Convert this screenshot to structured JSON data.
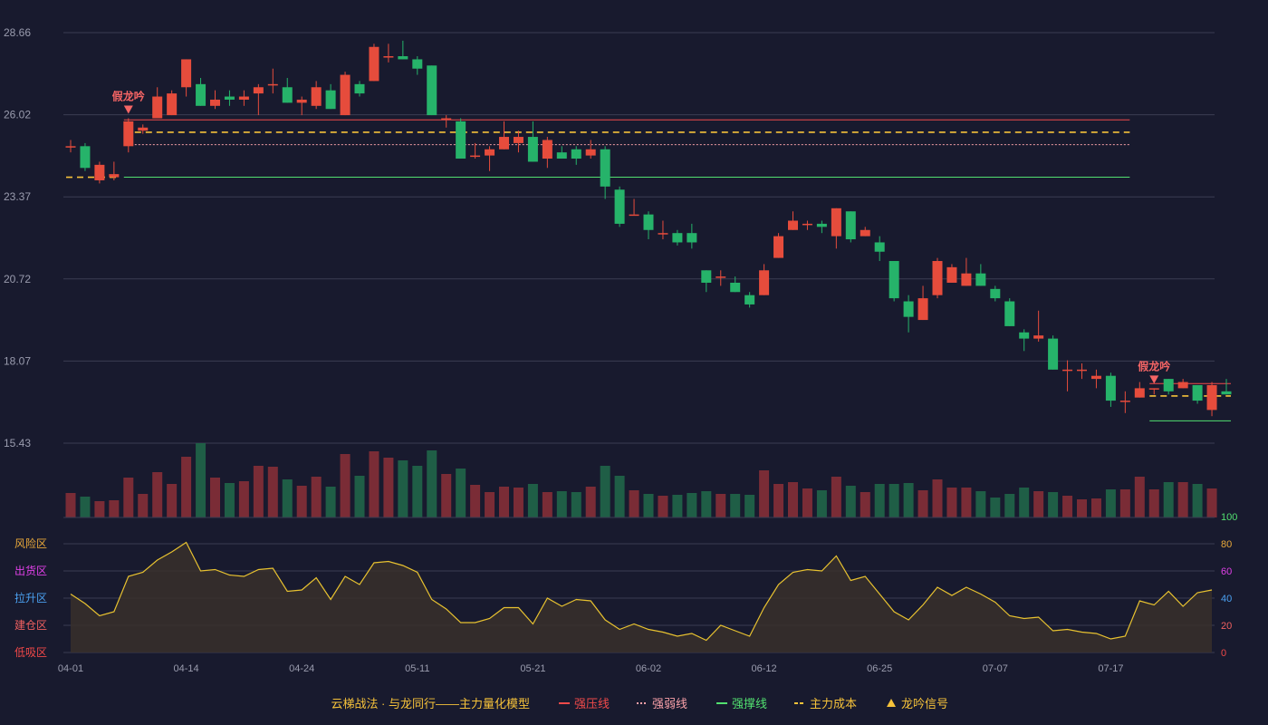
{
  "colors": {
    "background": "#181a2e",
    "grid": "#3a3c52",
    "axis_text": "#9a9cae",
    "up": "#e64c3c",
    "down": "#26b36a",
    "vol_up": "#7a2c36",
    "vol_down": "#1f5e46",
    "resistance": "#f04a4a",
    "weak": "#f8a0a8",
    "support": "#52e070",
    "cost": "#f6c23a",
    "signal": "#f56565",
    "osc_line": "#e8c230",
    "osc_fill": "#38302a",
    "legend_text": "#f6c23a"
  },
  "chart_data": {
    "type": "candlestick",
    "y_axis_ticks": [
      "28.66",
      "26.02",
      "23.37",
      "20.72",
      "18.07",
      "15.43"
    ],
    "ylim": [
      15.43,
      28.66
    ],
    "x_tick_labels": [
      {
        "label": "04-01",
        "index": 0
      },
      {
        "label": "04-14",
        "index": 8
      },
      {
        "label": "04-24",
        "index": 16
      },
      {
        "label": "05-11",
        "index": 24
      },
      {
        "label": "05-21",
        "index": 32
      },
      {
        "label": "06-02",
        "index": 40
      },
      {
        "label": "06-12",
        "index": 48
      },
      {
        "label": "06-25",
        "index": 56
      },
      {
        "label": "07-07",
        "index": 64
      },
      {
        "label": "07-17",
        "index": 72
      }
    ],
    "candles": [
      [
        25.0,
        25.0,
        25.2,
        24.8
      ],
      [
        25.0,
        24.3,
        25.1,
        24.2
      ],
      [
        23.9,
        24.4,
        24.5,
        23.8
      ],
      [
        24.0,
        24.1,
        24.5,
        23.9
      ],
      [
        25.0,
        25.8,
        25.9,
        24.8
      ],
      [
        25.5,
        25.6,
        25.7,
        25.4
      ],
      [
        25.9,
        26.6,
        26.9,
        25.9
      ],
      [
        26.0,
        26.7,
        26.8,
        26.0
      ],
      [
        26.9,
        27.8,
        27.8,
        26.6
      ],
      [
        27.0,
        26.3,
        27.2,
        26.3
      ],
      [
        26.3,
        26.5,
        26.8,
        26.2
      ],
      [
        26.6,
        26.5,
        26.8,
        26.3
      ],
      [
        26.5,
        26.6,
        26.8,
        26.3
      ],
      [
        26.7,
        26.9,
        27.0,
        26.0
      ],
      [
        27.0,
        27.0,
        27.5,
        26.7
      ],
      [
        26.9,
        26.4,
        27.2,
        26.4
      ],
      [
        26.4,
        26.5,
        26.6,
        26.0
      ],
      [
        26.3,
        26.9,
        27.1,
        26.2
      ],
      [
        26.8,
        26.2,
        27.0,
        26.2
      ],
      [
        26.0,
        27.3,
        27.4,
        26.0
      ],
      [
        27.0,
        26.7,
        27.1,
        26.6
      ],
      [
        27.1,
        28.2,
        28.3,
        27.1
      ],
      [
        27.9,
        27.9,
        28.3,
        27.7
      ],
      [
        27.9,
        27.8,
        28.4,
        27.8
      ],
      [
        27.8,
        27.5,
        27.9,
        27.3
      ],
      [
        27.6,
        26.0,
        27.6,
        26.0
      ],
      [
        25.9,
        25.9,
        26.0,
        25.6
      ],
      [
        25.8,
        24.6,
        25.9,
        24.6
      ],
      [
        24.7,
        24.7,
        25.1,
        24.6
      ],
      [
        24.7,
        24.9,
        25.0,
        24.2
      ],
      [
        24.9,
        25.3,
        25.8,
        24.9
      ],
      [
        25.1,
        25.3,
        25.5,
        24.8
      ],
      [
        25.3,
        24.5,
        25.8,
        24.5
      ],
      [
        24.6,
        25.2,
        25.3,
        24.3
      ],
      [
        24.8,
        24.6,
        25.0,
        24.6
      ],
      [
        24.9,
        24.6,
        25.0,
        24.4
      ],
      [
        24.7,
        24.9,
        25.2,
        24.6
      ],
      [
        24.9,
        23.7,
        25.0,
        23.3
      ],
      [
        23.6,
        22.5,
        23.7,
        22.4
      ],
      [
        22.8,
        22.8,
        23.3,
        22.8
      ],
      [
        22.8,
        22.3,
        22.9,
        22.0
      ],
      [
        22.2,
        22.2,
        22.6,
        22.0
      ],
      [
        22.2,
        21.9,
        22.3,
        21.8
      ],
      [
        22.2,
        21.9,
        22.5,
        21.7
      ],
      [
        21.0,
        20.6,
        21.0,
        20.3
      ],
      [
        20.8,
        20.8,
        21.0,
        20.5
      ],
      [
        20.6,
        20.3,
        20.8,
        20.3
      ],
      [
        20.2,
        19.9,
        20.3,
        19.8
      ],
      [
        20.2,
        21.0,
        21.2,
        20.2
      ],
      [
        21.4,
        22.1,
        22.2,
        21.4
      ],
      [
        22.3,
        22.6,
        22.9,
        22.3
      ],
      [
        22.5,
        22.5,
        22.6,
        22.3
      ],
      [
        22.5,
        22.4,
        22.6,
        22.2
      ],
      [
        22.1,
        23.0,
        23.0,
        21.7
      ],
      [
        22.9,
        22.0,
        22.9,
        21.9
      ],
      [
        22.1,
        22.3,
        22.4,
        22.1
      ],
      [
        21.9,
        21.6,
        22.1,
        21.3
      ],
      [
        21.3,
        20.1,
        21.3,
        20.0
      ],
      [
        20.0,
        19.5,
        20.2,
        19.0
      ],
      [
        19.4,
        20.1,
        20.5,
        19.4
      ],
      [
        20.2,
        21.3,
        21.4,
        20.1
      ],
      [
        20.6,
        21.1,
        21.2,
        20.6
      ],
      [
        20.5,
        20.9,
        21.4,
        20.5
      ],
      [
        20.9,
        20.5,
        21.2,
        20.5
      ],
      [
        20.4,
        20.1,
        20.5,
        20.0
      ],
      [
        20.0,
        19.2,
        20.1,
        19.2
      ],
      [
        19.0,
        18.8,
        19.1,
        18.4
      ],
      [
        18.8,
        18.9,
        19.7,
        18.7
      ],
      [
        18.8,
        17.8,
        18.9,
        17.8
      ],
      [
        17.8,
        17.8,
        18.1,
        17.1
      ],
      [
        17.8,
        17.8,
        18.0,
        17.5
      ],
      [
        17.5,
        17.6,
        17.8,
        17.2
      ],
      [
        17.6,
        16.8,
        17.7,
        16.6
      ],
      [
        16.8,
        16.8,
        17.1,
        16.4
      ],
      [
        16.9,
        17.2,
        17.4,
        16.9
      ],
      [
        17.2,
        17.2,
        17.2,
        17.0
      ],
      [
        17.5,
        17.1,
        17.5,
        17.0
      ],
      [
        17.2,
        17.4,
        17.5,
        17.2
      ],
      [
        17.3,
        16.8,
        17.3,
        16.7
      ],
      [
        16.5,
        17.3,
        17.4,
        16.3
      ],
      [
        17.1,
        17.0,
        17.5,
        17.0
      ]
    ],
    "volume_heights": [
      27,
      23,
      18,
      19,
      44,
      26,
      50,
      37,
      67,
      82,
      44,
      38,
      40,
      57,
      56,
      42,
      35,
      45,
      34,
      70,
      46,
      73,
      66,
      63,
      57,
      74,
      48,
      54,
      36,
      28,
      34,
      33,
      37,
      28,
      29,
      28,
      34,
      57,
      46,
      30,
      26,
      24,
      25,
      27,
      29,
      26,
      26,
      25,
      52,
      37,
      39,
      32,
      30,
      45,
      35,
      28,
      37,
      37,
      38,
      30,
      42,
      33,
      33,
      29,
      22,
      26,
      33,
      29,
      28,
      24,
      20,
      21,
      31,
      31,
      45,
      31,
      39,
      39,
      37,
      32
    ],
    "volume_up": [
      1,
      1,
      1,
      1,
      1,
      1,
      1,
      1,
      1,
      1,
      1,
      1,
      1,
      1,
      1,
      1,
      1,
      1,
      1,
      1,
      1,
      1,
      1,
      1,
      1,
      1,
      1,
      1,
      1,
      1,
      1,
      1,
      1,
      1,
      1,
      1,
      1,
      1,
      1,
      1,
      1,
      1,
      1,
      1,
      1,
      1,
      1,
      1,
      1,
      1,
      1,
      1,
      1,
      1,
      1,
      1,
      1,
      1,
      1,
      1,
      1,
      1,
      1,
      1,
      1,
      1,
      1,
      1,
      1,
      1,
      1,
      1,
      1,
      1,
      1,
      1,
      1,
      1,
      1,
      1
    ],
    "oscillator": [
      43,
      36,
      27,
      30,
      56,
      59,
      68,
      74,
      81,
      60,
      61,
      57,
      56,
      61,
      62,
      45,
      46,
      55,
      39,
      56,
      50,
      66,
      67,
      64,
      59,
      39,
      32,
      22,
      22,
      25,
      33,
      33,
      21,
      40,
      34,
      39,
      38,
      24,
      17,
      21,
      17,
      15,
      12,
      14,
      9,
      20,
      16,
      12,
      33,
      50,
      59,
      61,
      60,
      71,
      53,
      56,
      43,
      30,
      24,
      35,
      48,
      42,
      48,
      43,
      37,
      27,
      25,
      26,
      16,
      17,
      15,
      14,
      10,
      12,
      38,
      35,
      45,
      34,
      44,
      46
    ],
    "oscillator_ticks": [
      "100",
      "80",
      "60",
      "40",
      "20",
      "0"
    ],
    "zone_labels": [
      "风险区",
      "出货区",
      "拉升区",
      "建仓区",
      "低吸区"
    ],
    "signal_label": "假龙吟",
    "signals": [
      4,
      75
    ],
    "levels": [
      {
        "kind": "resistance",
        "value": 25.85,
        "from": 4,
        "to": 73
      },
      {
        "kind": "cost",
        "value": 25.45,
        "from": 4,
        "to": 73
      },
      {
        "kind": "weak",
        "value": 25.05,
        "from": 4,
        "to": 73
      },
      {
        "kind": "support",
        "value": 24.0,
        "from": 4,
        "to": 73
      },
      {
        "kind": "resistance",
        "value": 17.35,
        "from": 75,
        "to": 80
      },
      {
        "kind": "cost",
        "value": 16.95,
        "from": 75,
        "to": 80
      },
      {
        "kind": "support",
        "value": 16.15,
        "from": 75,
        "to": 80
      }
    ],
    "early_cost": {
      "value": 24.0,
      "from": 0,
      "to": 3
    }
  },
  "legend": {
    "title": "云梯战法 · 与龙同行——主力量化模型",
    "items": [
      {
        "kind": "resistance",
        "label": "强压线"
      },
      {
        "kind": "weak",
        "label": "强弱线"
      },
      {
        "kind": "support",
        "label": "强撑线"
      },
      {
        "kind": "cost",
        "label": "主力成本"
      },
      {
        "kind": "signal",
        "label": "龙吟信号"
      }
    ]
  }
}
